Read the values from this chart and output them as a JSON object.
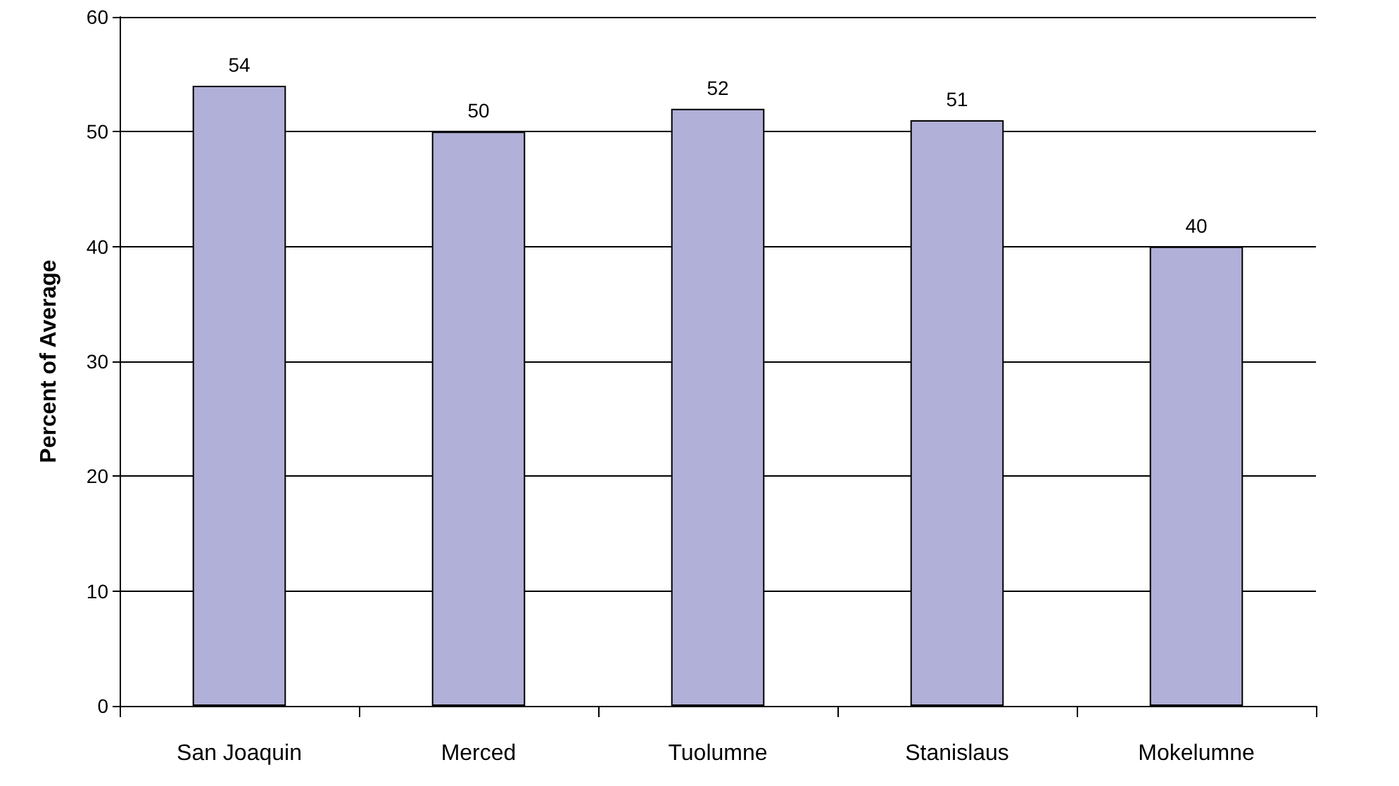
{
  "chart_data": {
    "type": "bar",
    "ylabel": "Percent of Average",
    "categories": [
      "San Joaquin",
      "Merced",
      "Tuolumne",
      "Stanislaus",
      "Mokelumne"
    ],
    "values": [
      54,
      50,
      52,
      51,
      40
    ],
    "color": "#b0b0d8",
    "ylim": [
      0,
      60
    ],
    "yticks": [
      0,
      10,
      20,
      30,
      40,
      50,
      60
    ],
    "grid": "y",
    "data_labels": true
  }
}
